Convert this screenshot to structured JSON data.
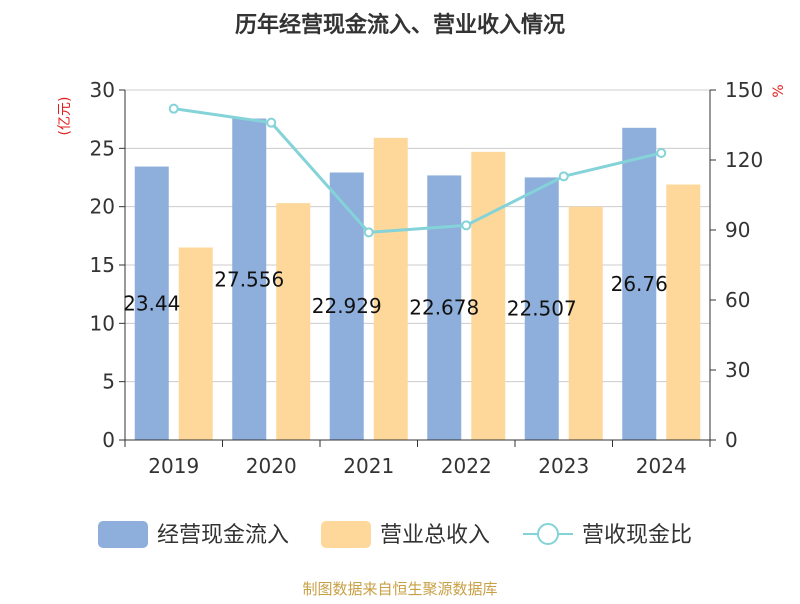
{
  "chart_data": {
    "type": "bar",
    "title": "历年经营现金流入、营业收入情况",
    "categories": [
      "2019",
      "2020",
      "2021",
      "2022",
      "2023",
      "2024"
    ],
    "y_left": {
      "label": "(亿元)",
      "ylim": [
        0,
        30
      ],
      "ticks": [
        "0",
        "5",
        "10",
        "15",
        "20",
        "25",
        "30"
      ]
    },
    "y_right": {
      "label": "%",
      "ylim": [
        0,
        150
      ],
      "ticks": [
        "0",
        "30",
        "60",
        "90",
        "120",
        "150"
      ]
    },
    "series": [
      {
        "name": "经营现金流入",
        "type": "bar",
        "axis": "left",
        "color": "#8eaedb",
        "values": [
          23.44,
          27.556,
          22.929,
          22.678,
          22.507,
          26.76
        ],
        "labels": [
          "23.44",
          "27.556",
          "22.929",
          "22.678",
          "22.507",
          "26.76"
        ]
      },
      {
        "name": "营业总收入",
        "type": "bar",
        "axis": "left",
        "color": "#fdd89a",
        "values": [
          16.5,
          20.3,
          25.9,
          24.7,
          20.0,
          21.9
        ]
      },
      {
        "name": "营收现金比",
        "type": "line",
        "axis": "right",
        "color": "#84d3d8",
        "values": [
          142,
          136,
          89,
          92,
          113,
          123
        ]
      }
    ],
    "grid": true,
    "legend_position": "bottom"
  },
  "source": "制图数据来自恒生聚源数据库"
}
